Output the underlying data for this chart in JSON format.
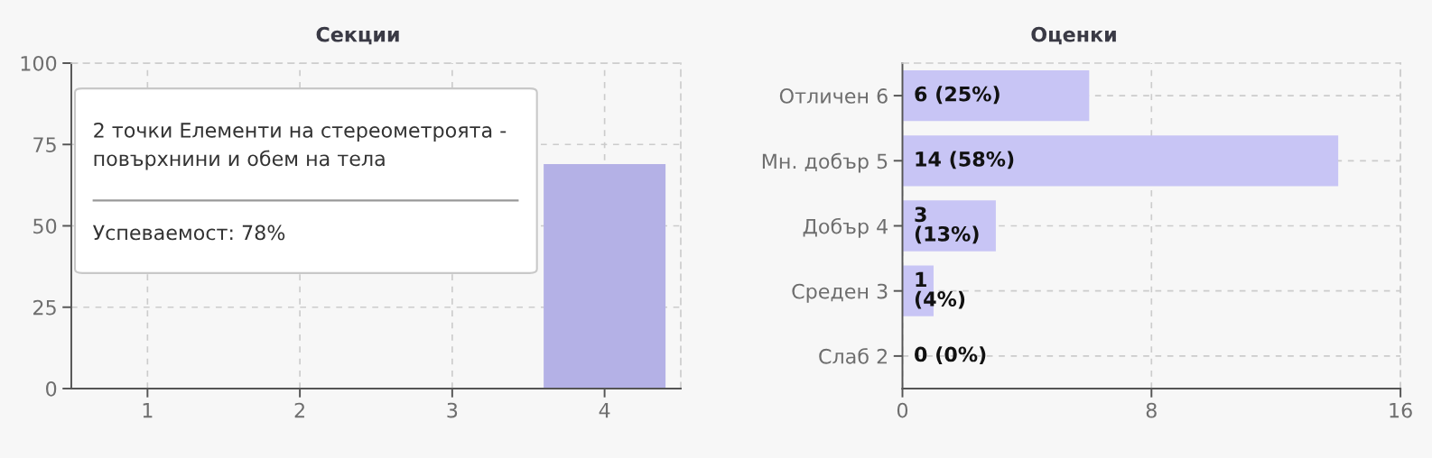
{
  "chart_data": [
    {
      "type": "bar",
      "title": "Секции",
      "categories": [
        "1",
        "2",
        "3",
        "4"
      ],
      "values": [
        null,
        null,
        null,
        69
      ],
      "color": "#b4b1e6",
      "ylim": [
        0,
        100
      ],
      "yticks": [
        0,
        25,
        50,
        75,
        100
      ],
      "grid": true,
      "annotations": [
        "2 точки Елементи на стереометроята -\nповърхнини и обем на тела",
        "Успеваемост: 78%"
      ]
    },
    {
      "type": "bar",
      "orientation": "horizontal",
      "title": "Оценки",
      "categories": [
        "Отличен 6",
        "Мн. добър 5",
        "Добър 4",
        "Среден 3",
        "Слаб 2"
      ],
      "values": [
        6,
        14,
        3,
        1,
        0
      ],
      "color": "#c8c5f5",
      "xlim": [
        0,
        16
      ],
      "xticks": [
        0,
        8,
        16
      ],
      "grid": true,
      "value_labels": [
        "6 (25%)",
        "14 (58%)",
        "3\n(13%)",
        "1\n(4%)",
        "0 (0%)"
      ]
    }
  ]
}
